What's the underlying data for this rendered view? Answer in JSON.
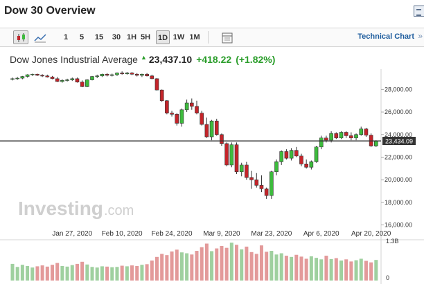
{
  "header": {
    "title": "Dow 30 Overview"
  },
  "toolbar": {
    "intervals": [
      "1",
      "5",
      "15",
      "30",
      "1H",
      "5H",
      "1D",
      "1W",
      "1M"
    ],
    "active_interval": "1D",
    "technical_chart_label": "Technical Chart",
    "technical_chart_chevron": "»"
  },
  "quote": {
    "name": "Dow Jones Industrial Average",
    "price": "23,437.10",
    "change": "+418.22",
    "change_pct": "(+1.82%)"
  },
  "colors": {
    "up": "#2a9d2a",
    "down": "#c0272d",
    "candle_up": "#3dbb3d",
    "candle_down": "#c4242a",
    "vol_up": "#9fd09f",
    "vol_down": "#e39a9a",
    "link": "#1a5a9c"
  },
  "watermark": {
    "brand": "Investing",
    "suffix": ".com"
  },
  "chart_data": {
    "type": "candlestick",
    "series_name": "Dow Jones Industrial Average",
    "y_ticks": [
      "28,000.00",
      "26,000.00",
      "24,000.00",
      "22,000.00",
      "20,000.00",
      "18,000.00",
      "16,000.00"
    ],
    "y_tick_values": [
      28000,
      26000,
      24000,
      22000,
      20000,
      18000,
      16000
    ],
    "ylim": [
      15600,
      29800
    ],
    "x_ticks": [
      "Jan 27, 2020",
      "Feb 10, 2020",
      "Feb 24, 2020",
      "Mar 9, 2020",
      "Mar 23, 2020",
      "Apr 6, 2020",
      "Apr 20, 2020"
    ],
    "x_tick_index": [
      12,
      22,
      32,
      42,
      52,
      62,
      72
    ],
    "current_price_label": "23,434.09",
    "current_price_value": 23434.09,
    "volume_ticks": [
      "1.3B",
      "0"
    ],
    "volume_max": 1300000000,
    "candles": [
      {
        "o": 28900,
        "h": 29050,
        "l": 28800,
        "c": 28950
      },
      {
        "o": 28950,
        "h": 29100,
        "l": 28850,
        "c": 29000
      },
      {
        "o": 29000,
        "h": 29200,
        "l": 28900,
        "c": 29150
      },
      {
        "o": 29150,
        "h": 29350,
        "l": 29050,
        "c": 29300
      },
      {
        "o": 29300,
        "h": 29400,
        "l": 29200,
        "c": 29350
      },
      {
        "o": 29350,
        "h": 29400,
        "l": 29200,
        "c": 29250
      },
      {
        "o": 29250,
        "h": 29350,
        "l": 29100,
        "c": 29200
      },
      {
        "o": 29200,
        "h": 29300,
        "l": 29050,
        "c": 29100
      },
      {
        "o": 29100,
        "h": 29200,
        "l": 28900,
        "c": 28950
      },
      {
        "o": 28950,
        "h": 29100,
        "l": 28650,
        "c": 28700
      },
      {
        "o": 28700,
        "h": 28900,
        "l": 28600,
        "c": 28800
      },
      {
        "o": 28800,
        "h": 28950,
        "l": 28700,
        "c": 28850
      },
      {
        "o": 28850,
        "h": 29050,
        "l": 28750,
        "c": 28950
      },
      {
        "o": 28950,
        "h": 29050,
        "l": 28600,
        "c": 28650
      },
      {
        "o": 28650,
        "h": 28800,
        "l": 28200,
        "c": 28250
      },
      {
        "o": 28250,
        "h": 28900,
        "l": 28200,
        "c": 28850
      },
      {
        "o": 28850,
        "h": 29200,
        "l": 28800,
        "c": 29150
      },
      {
        "o": 29150,
        "h": 29300,
        "l": 29000,
        "c": 29200
      },
      {
        "o": 29200,
        "h": 29400,
        "l": 29100,
        "c": 29350
      },
      {
        "o": 29350,
        "h": 29450,
        "l": 29150,
        "c": 29250
      },
      {
        "o": 29250,
        "h": 29400,
        "l": 29150,
        "c": 29300
      },
      {
        "o": 29300,
        "h": 29500,
        "l": 29200,
        "c": 29450
      },
      {
        "o": 29450,
        "h": 29600,
        "l": 29300,
        "c": 29400
      },
      {
        "o": 29400,
        "h": 29550,
        "l": 29300,
        "c": 29450
      },
      {
        "o": 29450,
        "h": 29550,
        "l": 29250,
        "c": 29350
      },
      {
        "o": 29350,
        "h": 29450,
        "l": 29150,
        "c": 29250
      },
      {
        "o": 29250,
        "h": 29400,
        "l": 29100,
        "c": 29350
      },
      {
        "o": 29350,
        "h": 29450,
        "l": 29150,
        "c": 29200
      },
      {
        "o": 29200,
        "h": 29300,
        "l": 28900,
        "c": 28950
      },
      {
        "o": 28950,
        "h": 29000,
        "l": 27900,
        "c": 27950
      },
      {
        "o": 27950,
        "h": 28000,
        "l": 26900,
        "c": 27000
      },
      {
        "o": 27000,
        "h": 27050,
        "l": 25800,
        "c": 25900
      },
      {
        "o": 25900,
        "h": 26100,
        "l": 25600,
        "c": 25800
      },
      {
        "o": 25800,
        "h": 25900,
        "l": 24800,
        "c": 25000
      },
      {
        "o": 25000,
        "h": 26300,
        "l": 24700,
        "c": 26200
      },
      {
        "o": 26200,
        "h": 27100,
        "l": 26000,
        "c": 26800
      },
      {
        "o": 26800,
        "h": 27200,
        "l": 26200,
        "c": 26500
      },
      {
        "o": 26500,
        "h": 27000,
        "l": 25800,
        "c": 25900
      },
      {
        "o": 25900,
        "h": 26100,
        "l": 24800,
        "c": 24900
      },
      {
        "o": 24900,
        "h": 25500,
        "l": 23700,
        "c": 23800
      },
      {
        "o": 23800,
        "h": 25300,
        "l": 23500,
        "c": 25200
      },
      {
        "o": 25200,
        "h": 25400,
        "l": 23900,
        "c": 24000
      },
      {
        "o": 24000,
        "h": 24100,
        "l": 23000,
        "c": 23200
      },
      {
        "o": 23200,
        "h": 23300,
        "l": 21200,
        "c": 21300
      },
      {
        "o": 21300,
        "h": 23300,
        "l": 21100,
        "c": 23100
      },
      {
        "o": 23100,
        "h": 23300,
        "l": 20500,
        "c": 20700
      },
      {
        "o": 20700,
        "h": 21500,
        "l": 20300,
        "c": 21300
      },
      {
        "o": 21300,
        "h": 21600,
        "l": 20000,
        "c": 20200
      },
      {
        "o": 20200,
        "h": 20800,
        "l": 19200,
        "c": 20000
      },
      {
        "o": 20000,
        "h": 20600,
        "l": 19300,
        "c": 19500
      },
      {
        "o": 19500,
        "h": 20400,
        "l": 18900,
        "c": 19200
      },
      {
        "o": 19200,
        "h": 19300,
        "l": 18300,
        "c": 18600
      },
      {
        "o": 18600,
        "h": 20800,
        "l": 18300,
        "c": 20700
      },
      {
        "o": 20700,
        "h": 21800,
        "l": 20400,
        "c": 21600
      },
      {
        "o": 21600,
        "h": 22600,
        "l": 21300,
        "c": 22500
      },
      {
        "o": 22500,
        "h": 22700,
        "l": 21800,
        "c": 21900
      },
      {
        "o": 21900,
        "h": 22800,
        "l": 21700,
        "c": 22600
      },
      {
        "o": 22600,
        "h": 22900,
        "l": 22000,
        "c": 22100
      },
      {
        "o": 22100,
        "h": 22300,
        "l": 21200,
        "c": 21400
      },
      {
        "o": 21400,
        "h": 21800,
        "l": 21000,
        "c": 21100
      },
      {
        "o": 21100,
        "h": 21700,
        "l": 20900,
        "c": 21600
      },
      {
        "o": 21600,
        "h": 23000,
        "l": 21500,
        "c": 22900
      },
      {
        "o": 22900,
        "h": 23900,
        "l": 22700,
        "c": 23700
      },
      {
        "o": 23700,
        "h": 23900,
        "l": 23300,
        "c": 23500
      },
      {
        "o": 23500,
        "h": 24300,
        "l": 23300,
        "c": 24100
      },
      {
        "o": 24100,
        "h": 24200,
        "l": 23600,
        "c": 23700
      },
      {
        "o": 23700,
        "h": 24300,
        "l": 23600,
        "c": 24200
      },
      {
        "o": 24200,
        "h": 24300,
        "l": 23700,
        "c": 23900
      },
      {
        "o": 23900,
        "h": 24200,
        "l": 23500,
        "c": 23700
      },
      {
        "o": 23700,
        "h": 24100,
        "l": 23500,
        "c": 24000
      },
      {
        "o": 24000,
        "h": 24700,
        "l": 23900,
        "c": 24500
      },
      {
        "o": 24500,
        "h": 24600,
        "l": 23800,
        "c": 23950
      },
      {
        "o": 23950,
        "h": 24100,
        "l": 22900,
        "c": 23000
      },
      {
        "o": 23000,
        "h": 23500,
        "l": 22900,
        "c": 23437
      }
    ],
    "volumes": [
      0.55,
      0.45,
      0.52,
      0.48,
      0.43,
      0.47,
      0.5,
      0.46,
      0.52,
      0.58,
      0.48,
      0.46,
      0.51,
      0.55,
      0.62,
      0.53,
      0.45,
      0.43,
      0.47,
      0.46,
      0.44,
      0.45,
      0.49,
      0.47,
      0.5,
      0.48,
      0.52,
      0.54,
      0.66,
      0.78,
      0.88,
      0.84,
      0.96,
      1.02,
      0.93,
      0.9,
      0.86,
      0.98,
      1.1,
      1.22,
      0.97,
      1.06,
      1.14,
      1.08,
      1.25,
      1.18,
      1.03,
      1.12,
      0.94,
      0.88,
      1.16,
      0.95,
      0.98,
      0.86,
      0.9,
      0.82,
      0.78,
      0.85,
      0.79,
      0.72,
      0.8,
      0.75,
      0.7,
      0.82,
      0.71,
      0.74,
      0.66,
      0.7,
      0.63,
      0.67,
      0.72,
      0.65,
      0.6,
      0.68
    ]
  }
}
